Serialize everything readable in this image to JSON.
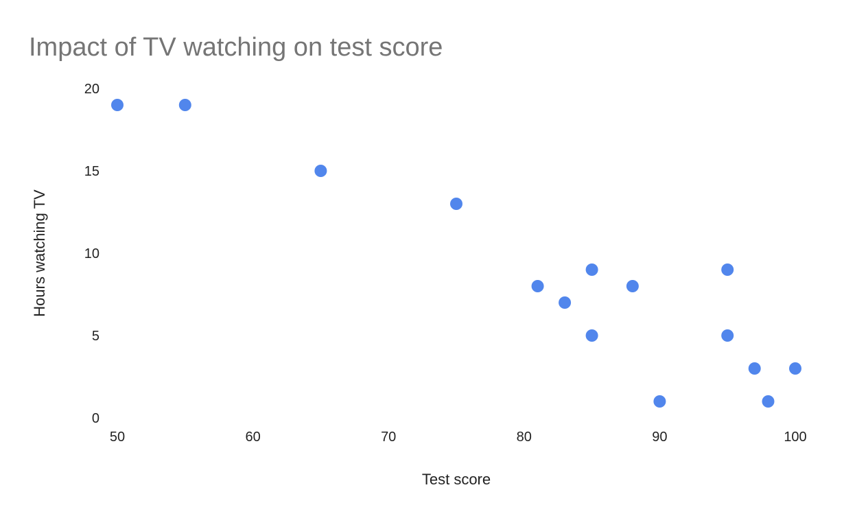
{
  "chart_data": {
    "type": "scatter",
    "title": "Impact of TV watching on test score",
    "xlabel": "Test score",
    "ylabel": "Hours watching TV",
    "xlim": [
      50,
      100
    ],
    "ylim": [
      0,
      20
    ],
    "xticks": [
      "50",
      "60",
      "70",
      "80",
      "90",
      "100"
    ],
    "yticks": [
      "0",
      "5",
      "10",
      "15",
      "20"
    ],
    "grid": false,
    "point_color": "#5186ec",
    "series": [
      {
        "x": [
          50,
          55,
          65,
          75,
          81,
          83,
          85,
          85,
          88,
          90,
          95,
          95,
          97,
          98,
          100
        ],
        "y": [
          19,
          19,
          15,
          13,
          8,
          7,
          9,
          5,
          8,
          1,
          9,
          5,
          3,
          1,
          3
        ]
      }
    ]
  }
}
